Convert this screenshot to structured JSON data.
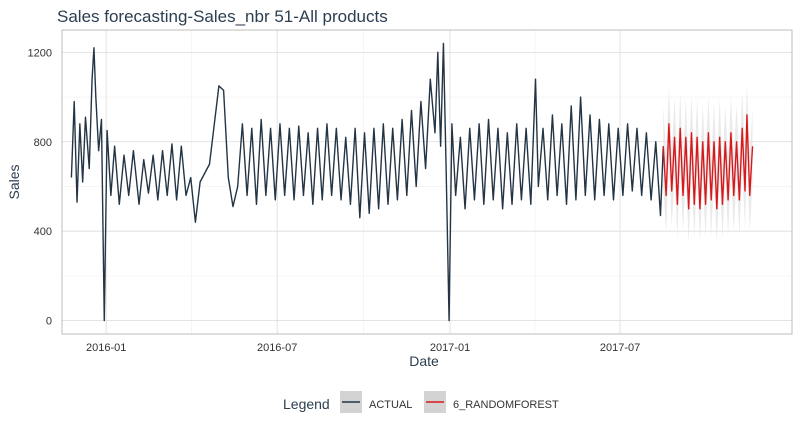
{
  "chart_data": {
    "type": "line",
    "title": "Sales forecasting-Sales_nbr 51-All products",
    "xlabel": "Date",
    "ylabel": "Sales",
    "xlim": [
      "2015-11-15",
      "2017-12-31"
    ],
    "ylim": [
      -60,
      1300
    ],
    "x_ticks": [
      {
        "value": "2016-01-01",
        "label": "2016-01"
      },
      {
        "value": "2016-07-01",
        "label": "2016-07"
      },
      {
        "value": "2017-01-01",
        "label": "2017-01"
      },
      {
        "value": "2017-07-01",
        "label": "2017-07"
      }
    ],
    "y_ticks": [
      0,
      400,
      800,
      1200
    ],
    "grid": true,
    "legend": {
      "title": "Legend",
      "position": "bottom",
      "entries": [
        "ACTUAL",
        "6_RANDOMFOREST"
      ]
    },
    "series": [
      {
        "name": "ACTUAL",
        "color": "#233545",
        "points": [
          [
            "2015-11-25",
            640
          ],
          [
            "2015-11-28",
            980
          ],
          [
            "2015-12-01",
            530
          ],
          [
            "2015-12-04",
            880
          ],
          [
            "2015-12-07",
            620
          ],
          [
            "2015-12-10",
            910
          ],
          [
            "2015-12-14",
            680
          ],
          [
            "2015-12-17",
            1080
          ],
          [
            "2015-12-19",
            1220
          ],
          [
            "2015-12-21",
            1000
          ],
          [
            "2015-12-24",
            760
          ],
          [
            "2015-12-27",
            900
          ],
          [
            "2015-12-30",
            0
          ],
          [
            "2016-01-02",
            850
          ],
          [
            "2016-01-06",
            560
          ],
          [
            "2016-01-10",
            780
          ],
          [
            "2016-01-15",
            520
          ],
          [
            "2016-01-20",
            740
          ],
          [
            "2016-01-25",
            560
          ],
          [
            "2016-01-30",
            760
          ],
          [
            "2016-02-05",
            520
          ],
          [
            "2016-02-10",
            720
          ],
          [
            "2016-02-15",
            570
          ],
          [
            "2016-02-20",
            740
          ],
          [
            "2016-02-25",
            540
          ],
          [
            "2016-03-01",
            760
          ],
          [
            "2016-03-06",
            560
          ],
          [
            "2016-03-11",
            790
          ],
          [
            "2016-03-16",
            540
          ],
          [
            "2016-03-21",
            780
          ],
          [
            "2016-03-26",
            560
          ],
          [
            "2016-03-31",
            640
          ],
          [
            "2016-04-05",
            440
          ],
          [
            "2016-04-10",
            620
          ],
          [
            "2016-04-20",
            700
          ],
          [
            "2016-04-30",
            1050
          ],
          [
            "2016-05-05",
            1030
          ],
          [
            "2016-05-10",
            640
          ],
          [
            "2016-05-15",
            510
          ],
          [
            "2016-05-20",
            600
          ],
          [
            "2016-05-25",
            880
          ],
          [
            "2016-05-30",
            560
          ],
          [
            "2016-06-04",
            860
          ],
          [
            "2016-06-09",
            520
          ],
          [
            "2016-06-14",
            900
          ],
          [
            "2016-06-19",
            560
          ],
          [
            "2016-06-24",
            860
          ],
          [
            "2016-06-29",
            540
          ],
          [
            "2016-07-04",
            880
          ],
          [
            "2016-07-09",
            560
          ],
          [
            "2016-07-14",
            860
          ],
          [
            "2016-07-19",
            540
          ],
          [
            "2016-07-24",
            870
          ],
          [
            "2016-07-29",
            560
          ],
          [
            "2016-08-03",
            840
          ],
          [
            "2016-08-08",
            520
          ],
          [
            "2016-08-13",
            860
          ],
          [
            "2016-08-18",
            540
          ],
          [
            "2016-08-23",
            880
          ],
          [
            "2016-08-28",
            560
          ],
          [
            "2016-09-02",
            860
          ],
          [
            "2016-09-07",
            540
          ],
          [
            "2016-09-12",
            820
          ],
          [
            "2016-09-17",
            520
          ],
          [
            "2016-09-22",
            860
          ],
          [
            "2016-09-27",
            460
          ],
          [
            "2016-10-02",
            840
          ],
          [
            "2016-10-07",
            480
          ],
          [
            "2016-10-12",
            860
          ],
          [
            "2016-10-17",
            500
          ],
          [
            "2016-10-22",
            880
          ],
          [
            "2016-10-27",
            520
          ],
          [
            "2016-11-01",
            860
          ],
          [
            "2016-11-06",
            540
          ],
          [
            "2016-11-11",
            900
          ],
          [
            "2016-11-16",
            560
          ],
          [
            "2016-11-21",
            940
          ],
          [
            "2016-11-26",
            600
          ],
          [
            "2016-12-01",
            980
          ],
          [
            "2016-12-06",
            680
          ],
          [
            "2016-12-11",
            1080
          ],
          [
            "2016-12-16",
            840
          ],
          [
            "2016-12-19",
            1200
          ],
          [
            "2016-12-22",
            780
          ],
          [
            "2016-12-25",
            1240
          ],
          [
            "2016-12-28",
            650
          ],
          [
            "2016-12-31",
            0
          ],
          [
            "2017-01-03",
            880
          ],
          [
            "2017-01-07",
            560
          ],
          [
            "2017-01-12",
            820
          ],
          [
            "2017-01-17",
            500
          ],
          [
            "2017-01-22",
            860
          ],
          [
            "2017-01-27",
            540
          ],
          [
            "2017-02-01",
            880
          ],
          [
            "2017-02-06",
            520
          ],
          [
            "2017-02-11",
            900
          ],
          [
            "2017-02-16",
            540
          ],
          [
            "2017-02-21",
            860
          ],
          [
            "2017-02-26",
            500
          ],
          [
            "2017-03-03",
            840
          ],
          [
            "2017-03-08",
            520
          ],
          [
            "2017-03-13",
            880
          ],
          [
            "2017-03-18",
            540
          ],
          [
            "2017-03-23",
            860
          ],
          [
            "2017-03-28",
            520
          ],
          [
            "2017-04-02",
            1080
          ],
          [
            "2017-04-05",
            600
          ],
          [
            "2017-04-10",
            860
          ],
          [
            "2017-04-15",
            540
          ],
          [
            "2017-04-20",
            920
          ],
          [
            "2017-04-25",
            560
          ],
          [
            "2017-04-30",
            880
          ],
          [
            "2017-05-05",
            520
          ],
          [
            "2017-05-10",
            960
          ],
          [
            "2017-05-15",
            540
          ],
          [
            "2017-05-20",
            1000
          ],
          [
            "2017-05-25",
            560
          ],
          [
            "2017-05-30",
            920
          ],
          [
            "2017-06-04",
            540
          ],
          [
            "2017-06-09",
            900
          ],
          [
            "2017-06-14",
            560
          ],
          [
            "2017-06-19",
            880
          ],
          [
            "2017-06-24",
            540
          ],
          [
            "2017-06-29",
            860
          ],
          [
            "2017-07-04",
            560
          ],
          [
            "2017-07-09",
            880
          ],
          [
            "2017-07-14",
            580
          ],
          [
            "2017-07-19",
            860
          ],
          [
            "2017-07-24",
            560
          ],
          [
            "2017-07-29",
            840
          ],
          [
            "2017-08-03",
            540
          ],
          [
            "2017-08-08",
            800
          ],
          [
            "2017-08-13",
            470
          ],
          [
            "2017-08-16",
            780
          ]
        ]
      },
      {
        "name": "6_RANDOMFOREST",
        "color": "#d7191c",
        "band_color": "#d9d9d9",
        "points": [
          [
            "2017-08-16",
            780,
            600,
            960
          ],
          [
            "2017-08-19",
            560,
            390,
            740
          ],
          [
            "2017-08-22",
            880,
            700,
            1040
          ],
          [
            "2017-08-25",
            580,
            420,
            760
          ],
          [
            "2017-08-28",
            820,
            650,
            990
          ],
          [
            "2017-08-31",
            520,
            370,
            700
          ],
          [
            "2017-09-03",
            860,
            690,
            1020
          ],
          [
            "2017-09-06",
            560,
            400,
            730
          ],
          [
            "2017-09-09",
            820,
            650,
            990
          ],
          [
            "2017-09-12",
            500,
            350,
            680
          ],
          [
            "2017-09-15",
            840,
            670,
            1010
          ],
          [
            "2017-09-18",
            520,
            370,
            700
          ],
          [
            "2017-09-21",
            820,
            650,
            990
          ],
          [
            "2017-09-24",
            500,
            350,
            680
          ],
          [
            "2017-09-27",
            800,
            640,
            960
          ],
          [
            "2017-09-30",
            520,
            370,
            700
          ],
          [
            "2017-10-03",
            840,
            670,
            1000
          ],
          [
            "2017-10-06",
            540,
            380,
            720
          ],
          [
            "2017-10-09",
            800,
            640,
            970
          ],
          [
            "2017-10-12",
            500,
            350,
            680
          ],
          [
            "2017-10-15",
            820,
            650,
            990
          ],
          [
            "2017-10-18",
            520,
            370,
            700
          ],
          [
            "2017-10-21",
            800,
            640,
            960
          ],
          [
            "2017-10-24",
            540,
            380,
            720
          ],
          [
            "2017-10-27",
            840,
            670,
            1000
          ],
          [
            "2017-10-30",
            560,
            400,
            740
          ],
          [
            "2017-11-02",
            800,
            640,
            960
          ],
          [
            "2017-11-05",
            540,
            380,
            720
          ],
          [
            "2017-11-08",
            860,
            690,
            1020
          ],
          [
            "2017-11-11",
            580,
            410,
            760
          ],
          [
            "2017-11-13",
            920,
            740,
            1060
          ],
          [
            "2017-11-16",
            560,
            400,
            740
          ],
          [
            "2017-11-19",
            780,
            620,
            950
          ]
        ]
      }
    ]
  }
}
